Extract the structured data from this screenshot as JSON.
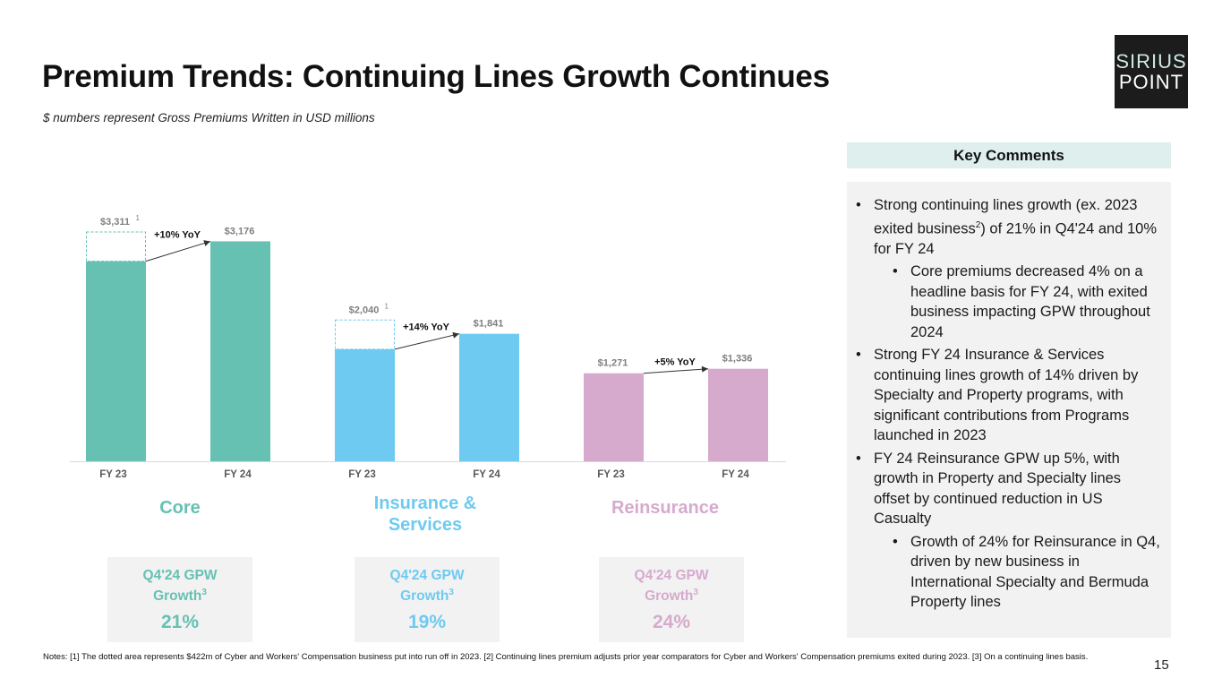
{
  "title": "Premium Trends: Continuing Lines Growth Continues",
  "subtitle": "$ numbers represent Gross Premiums Written in USD millions",
  "logo": {
    "line1": "SIRIUS",
    "line2": "POINT"
  },
  "chart_data": {
    "type": "bar",
    "segments": [
      {
        "name": "Core",
        "color": "#66c1b3",
        "bars": [
          {
            "category": "FY 23",
            "value": 2889,
            "label": "$3,311",
            "sup": "1",
            "dotted_total": 3311
          },
          {
            "category": "FY 24",
            "value": 3176,
            "label": "$3,176"
          }
        ],
        "yoy": "+10% YoY"
      },
      {
        "name": "Insurance & Services",
        "color": "#6ecaf1",
        "bars": [
          {
            "category": "FY 23",
            "value": 1618,
            "label": "$2,040",
            "sup": "1",
            "dotted_total": 2040
          },
          {
            "category": "FY 24",
            "value": 1841,
            "label": "$1,841"
          }
        ],
        "yoy": "+14% YoY"
      },
      {
        "name": "Reinsurance",
        "color": "#d6aacd",
        "bars": [
          {
            "category": "FY 23",
            "value": 1271,
            "label": "$1,271"
          },
          {
            "category": "FY 24",
            "value": 1336,
            "label": "$1,336"
          }
        ],
        "yoy": "+5% YoY"
      }
    ],
    "ylim": [
      0,
      3311
    ],
    "dotted_note_value": 422
  },
  "cards": [
    {
      "line1": "Q4'24 GPW",
      "line2": "Growth",
      "sup": "3",
      "value": "21%",
      "color": "#66c1b3"
    },
    {
      "line1": "Q4'24 GPW",
      "line2": "Growth",
      "sup": "3",
      "value": "19%",
      "color": "#6ecaf1"
    },
    {
      "line1": "Q4'24 GPW",
      "line2": "Growth",
      "sup": "3",
      "value": "24%",
      "color": "#d6aacd"
    }
  ],
  "segment_labels": {
    "core": "Core",
    "ins_line1": "Insurance &",
    "ins_line2": "Services",
    "reins": "Reinsurance"
  },
  "key_comments": {
    "heading": "Key Comments",
    "b1_pre": "Strong continuing lines growth (ex. 2023 exited business",
    "b1_sup": "2",
    "b1_post": ") of 21% in Q4'24 and 10% for FY 24",
    "b1_sub": "Core premiums decreased 4% on a headline basis for FY 24, with exited business impacting GPW throughout 2024",
    "b2": "Strong FY 24 Insurance & Services continuing lines growth of 14% driven by Specialty and Property programs, with significant contributions from Programs launched in 2023",
    "b3": "FY 24 Reinsurance GPW up 5%, with growth in Property and Specialty lines offset by continued reduction in US Casualty",
    "b3_sub": "Growth of 24% for Reinsurance in Q4, driven by new business in International Specialty and Bermuda Property lines"
  },
  "notes": "Notes: [1] The dotted area represents $422m of Cyber and Workers' Compensation business put into run off in 2023. [2] Continuing lines premium adjusts prior year comparators for Cyber and Workers' Compensation premiums exited during 2023. [3] On a continuing lines basis.",
  "page_number": "15"
}
